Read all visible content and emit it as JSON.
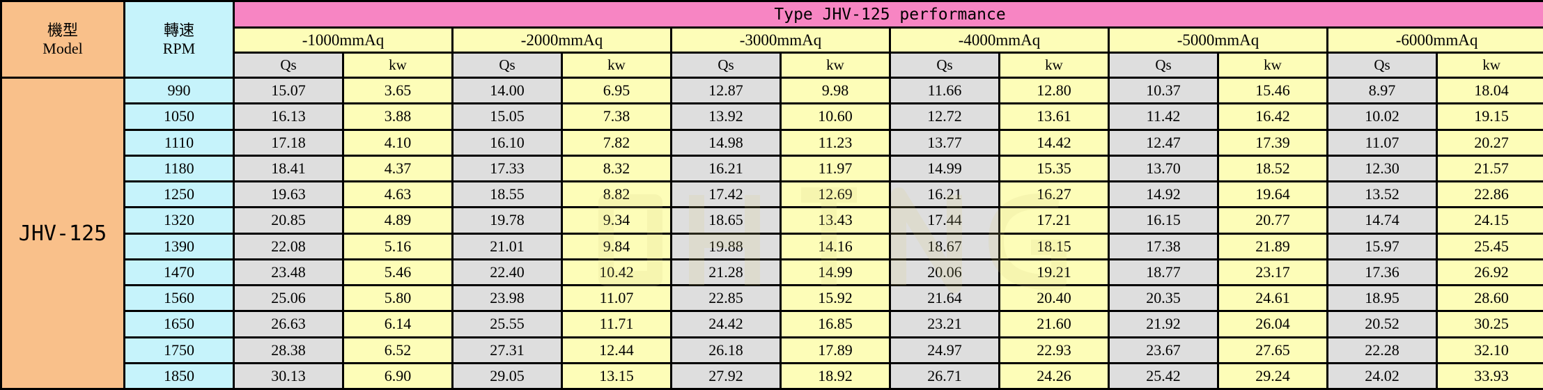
{
  "header": {
    "model_zh": "機型",
    "model_en": "Model",
    "rpm_zh": "轉速",
    "rpm_en": "RPM",
    "title": "Type JHV-125 performance",
    "pressures": [
      "-1000mmAq",
      "-2000mmAq",
      "-3000mmAq",
      "-4000mmAq",
      "-5000mmAq",
      "-6000mmAq"
    ],
    "qs_label": "Qs",
    "kw_label": "kw"
  },
  "model": "JHV-125",
  "rows": [
    {
      "rpm": "990",
      "vals": [
        "15.07",
        "3.65",
        "14.00",
        "6.95",
        "12.87",
        "9.98",
        "11.66",
        "12.80",
        "10.37",
        "15.46",
        "8.97",
        "18.04"
      ]
    },
    {
      "rpm": "1050",
      "vals": [
        "16.13",
        "3.88",
        "15.05",
        "7.38",
        "13.92",
        "10.60",
        "12.72",
        "13.61",
        "11.42",
        "16.42",
        "10.02",
        "19.15"
      ]
    },
    {
      "rpm": "1110",
      "vals": [
        "17.18",
        "4.10",
        "16.10",
        "7.82",
        "14.98",
        "11.23",
        "13.77",
        "14.42",
        "12.47",
        "17.39",
        "11.07",
        "20.27"
      ]
    },
    {
      "rpm": "1180",
      "vals": [
        "18.41",
        "4.37",
        "17.33",
        "8.32",
        "16.21",
        "11.97",
        "14.99",
        "15.35",
        "13.70",
        "18.52",
        "12.30",
        "21.57"
      ]
    },
    {
      "rpm": "1250",
      "vals": [
        "19.63",
        "4.63",
        "18.55",
        "8.82",
        "17.42",
        "12.69",
        "16.21",
        "16.27",
        "14.92",
        "19.64",
        "13.52",
        "22.86"
      ]
    },
    {
      "rpm": "1320",
      "vals": [
        "20.85",
        "4.89",
        "19.78",
        "9.34",
        "18.65",
        "13.43",
        "17.44",
        "17.21",
        "16.15",
        "20.77",
        "14.74",
        "24.15"
      ]
    },
    {
      "rpm": "1390",
      "vals": [
        "22.08",
        "5.16",
        "21.01",
        "9.84",
        "19.88",
        "14.16",
        "18.67",
        "18.15",
        "17.38",
        "21.89",
        "15.97",
        "25.45"
      ]
    },
    {
      "rpm": "1470",
      "vals": [
        "23.48",
        "5.46",
        "22.40",
        "10.42",
        "21.28",
        "14.99",
        "20.06",
        "19.21",
        "18.77",
        "23.17",
        "17.36",
        "26.92"
      ]
    },
    {
      "rpm": "1560",
      "vals": [
        "25.06",
        "5.80",
        "23.98",
        "11.07",
        "22.85",
        "15.92",
        "21.64",
        "20.40",
        "20.35",
        "24.61",
        "18.95",
        "28.60"
      ]
    },
    {
      "rpm": "1650",
      "vals": [
        "26.63",
        "6.14",
        "25.55",
        "11.71",
        "24.42",
        "16.85",
        "23.21",
        "21.60",
        "21.92",
        "26.04",
        "20.52",
        "30.25"
      ]
    },
    {
      "rpm": "1750",
      "vals": [
        "28.38",
        "6.52",
        "27.31",
        "12.44",
        "26.18",
        "17.89",
        "24.97",
        "22.93",
        "23.67",
        "27.65",
        "22.28",
        "32.10"
      ]
    },
    {
      "rpm": "1850",
      "vals": [
        "30.13",
        "6.90",
        "29.05",
        "13.15",
        "27.92",
        "18.92",
        "26.71",
        "24.26",
        "25.42",
        "29.24",
        "24.02",
        "33.93"
      ]
    }
  ],
  "colors": {
    "model_bg": "#f9c08a",
    "rpm_bg": "#c6f3fb",
    "title_bg": "#f785c3",
    "pressure_bg": "#fdfdb8",
    "qs_bg": "#dedede",
    "kw_bg": "#fdfdb8"
  }
}
